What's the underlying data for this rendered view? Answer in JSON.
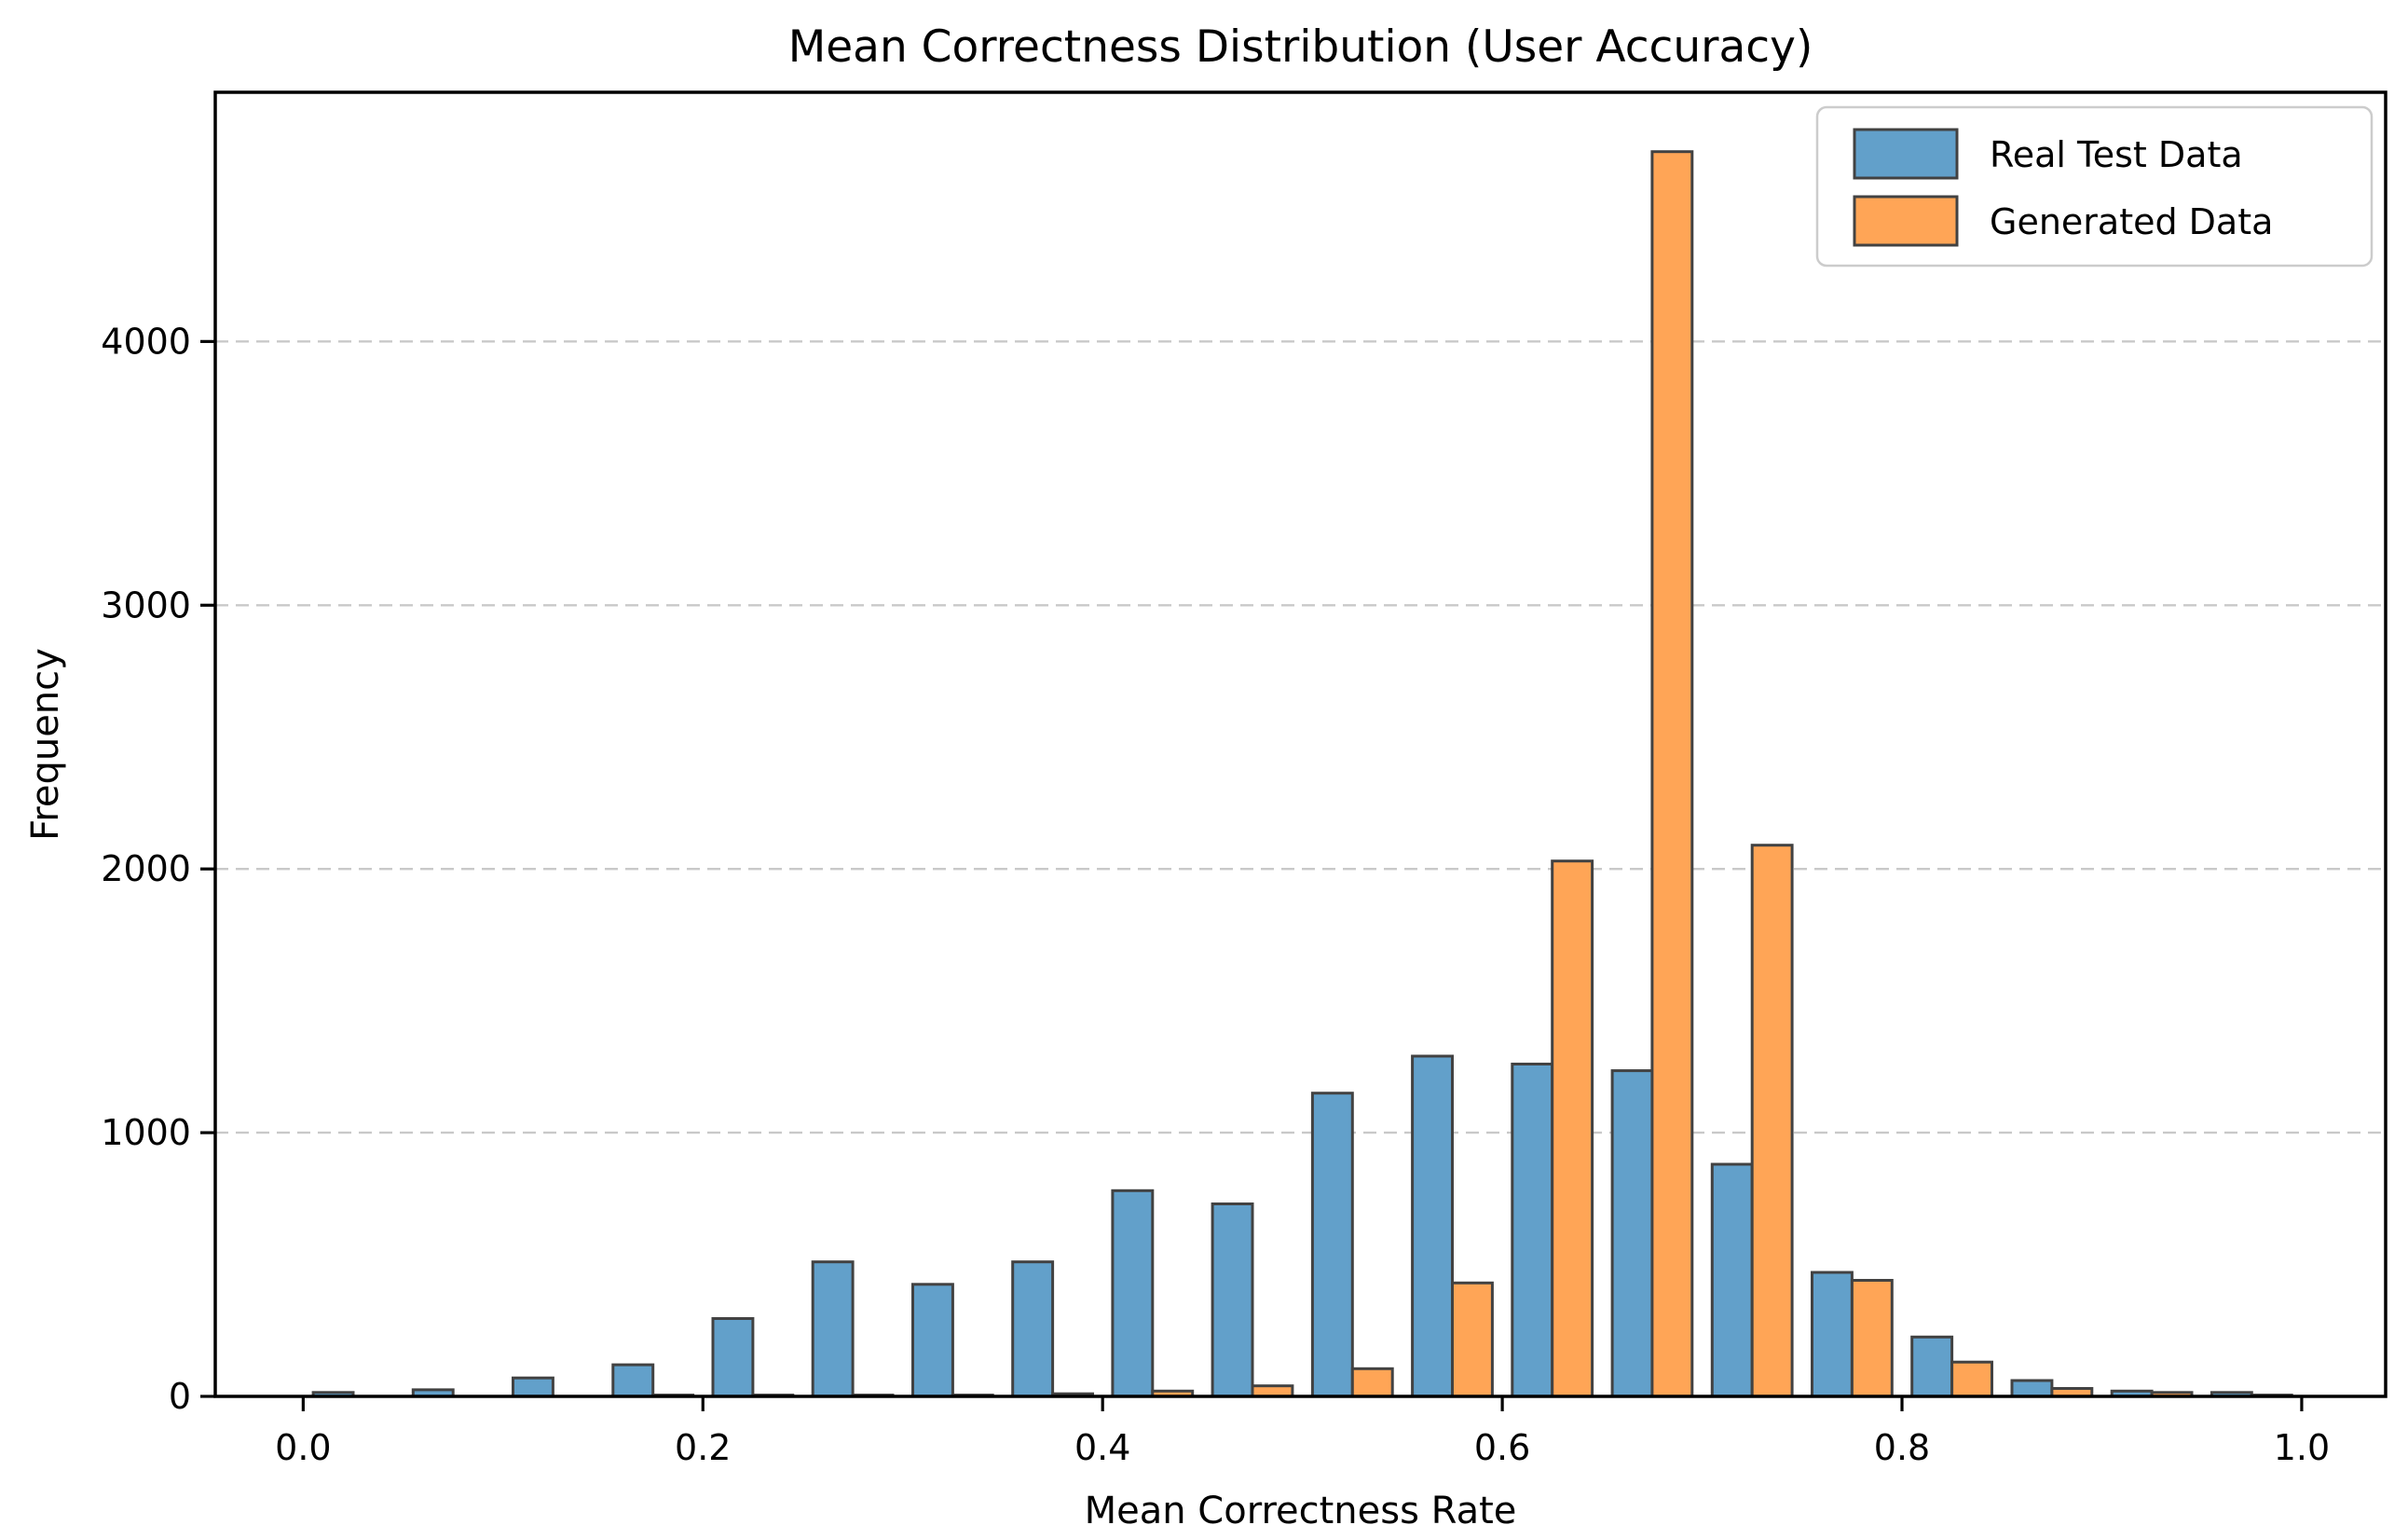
{
  "chart_data": {
    "type": "bar",
    "subtype": "grouped-histogram",
    "title": "Mean Correctness Distribution (User Accuracy)",
    "xlabel": "Mean Correctness Rate",
    "ylabel": "Frequency",
    "bin_width": 0.05,
    "bin_left_edges": [
      0.0,
      0.05,
      0.1,
      0.15,
      0.2,
      0.25,
      0.3,
      0.35,
      0.4,
      0.45,
      0.5,
      0.55,
      0.6,
      0.65,
      0.7,
      0.75,
      0.8,
      0.85,
      0.9,
      0.95
    ],
    "series": [
      {
        "name": "Real Test Data",
        "color": "#62a0ca",
        "values": [
          15,
          25,
          70,
          120,
          295,
          510,
          425,
          510,
          780,
          730,
          1150,
          1290,
          1260,
          1235,
          880,
          470,
          225,
          60,
          20,
          15
        ]
      },
      {
        "name": "Generated Data",
        "color": "#ffa556",
        "values": [
          0,
          0,
          0,
          5,
          5,
          5,
          5,
          10,
          20,
          40,
          105,
          430,
          2030,
          4720,
          2090,
          440,
          130,
          30,
          15,
          5
        ]
      }
    ],
    "bar_edge_color": "#424242",
    "xtick_labels": [
      "0.0",
      "0.2",
      "0.4",
      "0.6",
      "0.8",
      "1.0"
    ],
    "xtick_values": [
      0.0,
      0.2,
      0.4,
      0.6,
      0.8,
      1.0
    ],
    "ytick_labels": [
      "0",
      "1000",
      "2000",
      "3000",
      "4000"
    ],
    "ytick_values": [
      0,
      1000,
      2000,
      3000,
      4000
    ],
    "xlim": [
      -0.044,
      1.042
    ],
    "ylim": [
      0,
      4945
    ],
    "grid": "horizontal-dashed",
    "grid_color": "#c9c9c9",
    "axis_color": "#000000",
    "background_color": "#ffffff",
    "legend": {
      "position": "upper right",
      "entries": [
        "Real Test Data",
        "Generated Data"
      ],
      "border_color": "#cccccc",
      "background": "#ffffff"
    }
  }
}
